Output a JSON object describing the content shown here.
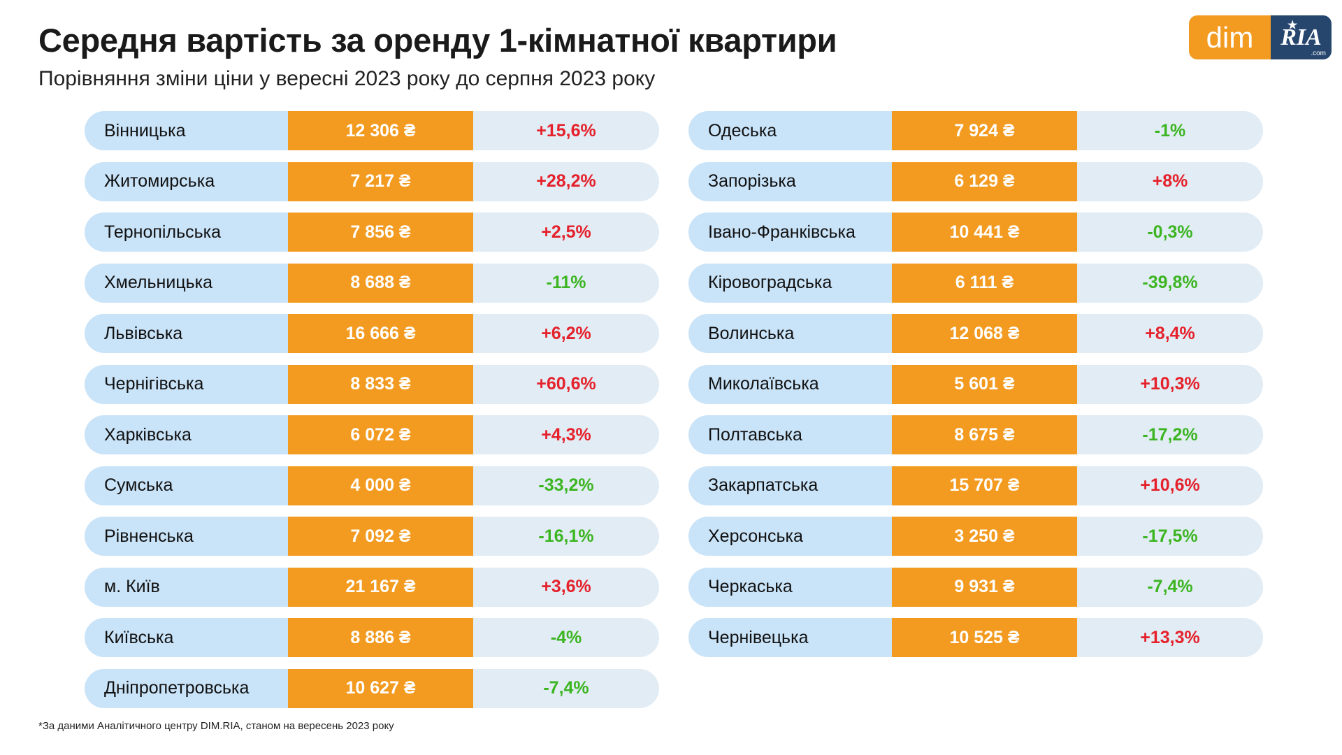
{
  "header": {
    "title": "Середня вартість за оренду 1-кімнатної квартири",
    "subtitle": "Порівняння зміни ціни у вересні 2023 року до серпня 2023 року"
  },
  "logo": {
    "dim": "dim",
    "ria": "RIA",
    "com": ".com"
  },
  "footnote": "*За даними Аналітичного центру DIM.RIA, станом на вересень 2023 року",
  "colors": {
    "region_bg": "#c9e3f8",
    "price_bg": "#f39b20",
    "change_bg": "#e1ecf5",
    "increase": "#e5212b",
    "decrease": "#3cb521"
  },
  "chart_data": {
    "type": "table",
    "columns": [
      "region",
      "price",
      "change"
    ],
    "left": [
      {
        "region": "Вінницька",
        "price": "12 306 ₴",
        "change": "+15,6%"
      },
      {
        "region": "Житомирська",
        "price": "7 217 ₴",
        "change": "+28,2%"
      },
      {
        "region": "Тернопільська",
        "price": "7 856 ₴",
        "change": "+2,5%"
      },
      {
        "region": "Хмельницька",
        "price": "8 688 ₴",
        "change": "-11%"
      },
      {
        "region": "Львівська",
        "price": "16 666 ₴",
        "change": "+6,2%"
      },
      {
        "region": "Чернігівська",
        "price": "8 833 ₴",
        "change": "+60,6%"
      },
      {
        "region": "Харківська",
        "price": "6 072 ₴",
        "change": "+4,3%"
      },
      {
        "region": "Сумська",
        "price": "4 000 ₴",
        "change": "-33,2%"
      },
      {
        "region": "Рівненська",
        "price": "7 092 ₴",
        "change": "-16,1%"
      },
      {
        "region": "м. Київ",
        "price": "21 167 ₴",
        "change": "+3,6%"
      },
      {
        "region": "Київська",
        "price": "8 886 ₴",
        "change": "-4%"
      },
      {
        "region": "Дніпропетровська",
        "price": "10 627 ₴",
        "change": "-7,4%"
      }
    ],
    "right": [
      {
        "region": "Одеська",
        "price": "7 924 ₴",
        "change": "-1%"
      },
      {
        "region": "Запорізька",
        "price": "6 129 ₴",
        "change": "+8%"
      },
      {
        "region": "Івано-Франківська",
        "price": "10 441 ₴",
        "change": "-0,3%"
      },
      {
        "region": "Кіровоградська",
        "price": "6 111 ₴",
        "change": "-39,8%"
      },
      {
        "region": "Волинська",
        "price": "12 068 ₴",
        "change": "+8,4%"
      },
      {
        "region": "Миколаївська",
        "price": "5 601 ₴",
        "change": "+10,3%"
      },
      {
        "region": "Полтавська",
        "price": "8 675 ₴",
        "change": "-17,2%"
      },
      {
        "region": "Закарпатська",
        "price": "15 707 ₴",
        "change": "+10,6%"
      },
      {
        "region": "Херсонська",
        "price": "3 250 ₴",
        "change": "-17,5%"
      },
      {
        "region": "Черкаська",
        "price": "9 931 ₴",
        "change": "-7,4%"
      },
      {
        "region": "Чернівецька",
        "price": "10 525 ₴",
        "change": "+13,3%"
      }
    ]
  }
}
